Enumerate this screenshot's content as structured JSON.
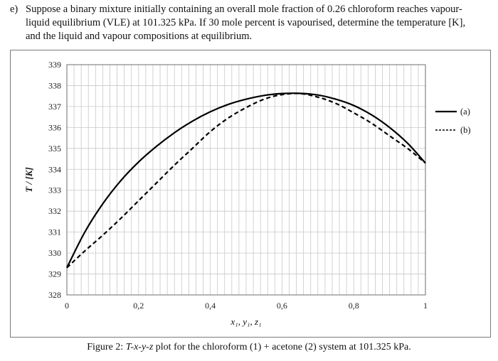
{
  "question": {
    "number": "e)",
    "line1": "Suppose a binary mixture initially containing an overall mole fraction of 0.26 chloroform reaches vapour-",
    "line2": "liquid equilibrium (VLE) at 101.325 kPa. If 30 mole percent is vapourised, determine the temperature [K],",
    "line3": "and the liquid and vapour compositions at equilibrium."
  },
  "caption": {
    "prefix": "Figure 2: ",
    "italic": "T-x-y-z",
    "rest": " plot for the chloroform (1) + acetone (2) system at 101.325 kPa."
  },
  "chart_data": {
    "type": "line",
    "xlabel": "x₁, y₁, z₁",
    "ylabel": "T / [K]",
    "xlim": [
      0,
      1
    ],
    "ylim": [
      328,
      339
    ],
    "x_ticks": [
      "0",
      "0,2",
      "0,4",
      "0,6",
      "0,8",
      "1"
    ],
    "y_ticks": [
      "328",
      "329",
      "330",
      "331",
      "332",
      "333",
      "334",
      "335",
      "336",
      "337",
      "338",
      "339"
    ],
    "grid": true,
    "legend_position": "right",
    "series": [
      {
        "name": "(a)",
        "style": "solid",
        "x": [
          0,
          0.05,
          0.1,
          0.15,
          0.2,
          0.25,
          0.3,
          0.35,
          0.4,
          0.45,
          0.5,
          0.55,
          0.6,
          0.65,
          0.7,
          0.75,
          0.8,
          0.85,
          0.9,
          0.95,
          1.0
        ],
        "y": [
          329.3,
          331.0,
          332.35,
          333.45,
          334.35,
          335.1,
          335.75,
          336.3,
          336.75,
          337.1,
          337.35,
          337.53,
          337.62,
          337.63,
          337.55,
          337.35,
          337.05,
          336.6,
          336.0,
          335.25,
          334.3
        ]
      },
      {
        "name": "(b)",
        "style": "dashed",
        "x": [
          0,
          0.05,
          0.1,
          0.15,
          0.2,
          0.25,
          0.3,
          0.35,
          0.4,
          0.45,
          0.5,
          0.55,
          0.6,
          0.65,
          0.7,
          0.75,
          0.8,
          0.85,
          0.9,
          0.95,
          1.0
        ],
        "y": [
          329.3,
          330.1,
          330.85,
          331.65,
          332.5,
          333.35,
          334.2,
          335.0,
          335.8,
          336.45,
          336.95,
          337.35,
          337.57,
          337.62,
          337.45,
          337.15,
          336.7,
          336.2,
          335.6,
          335.0,
          334.3
        ]
      }
    ],
    "colors": {
      "line": "#000000",
      "grid": "#c8c8c8",
      "frame": "#6e6e6e"
    }
  }
}
